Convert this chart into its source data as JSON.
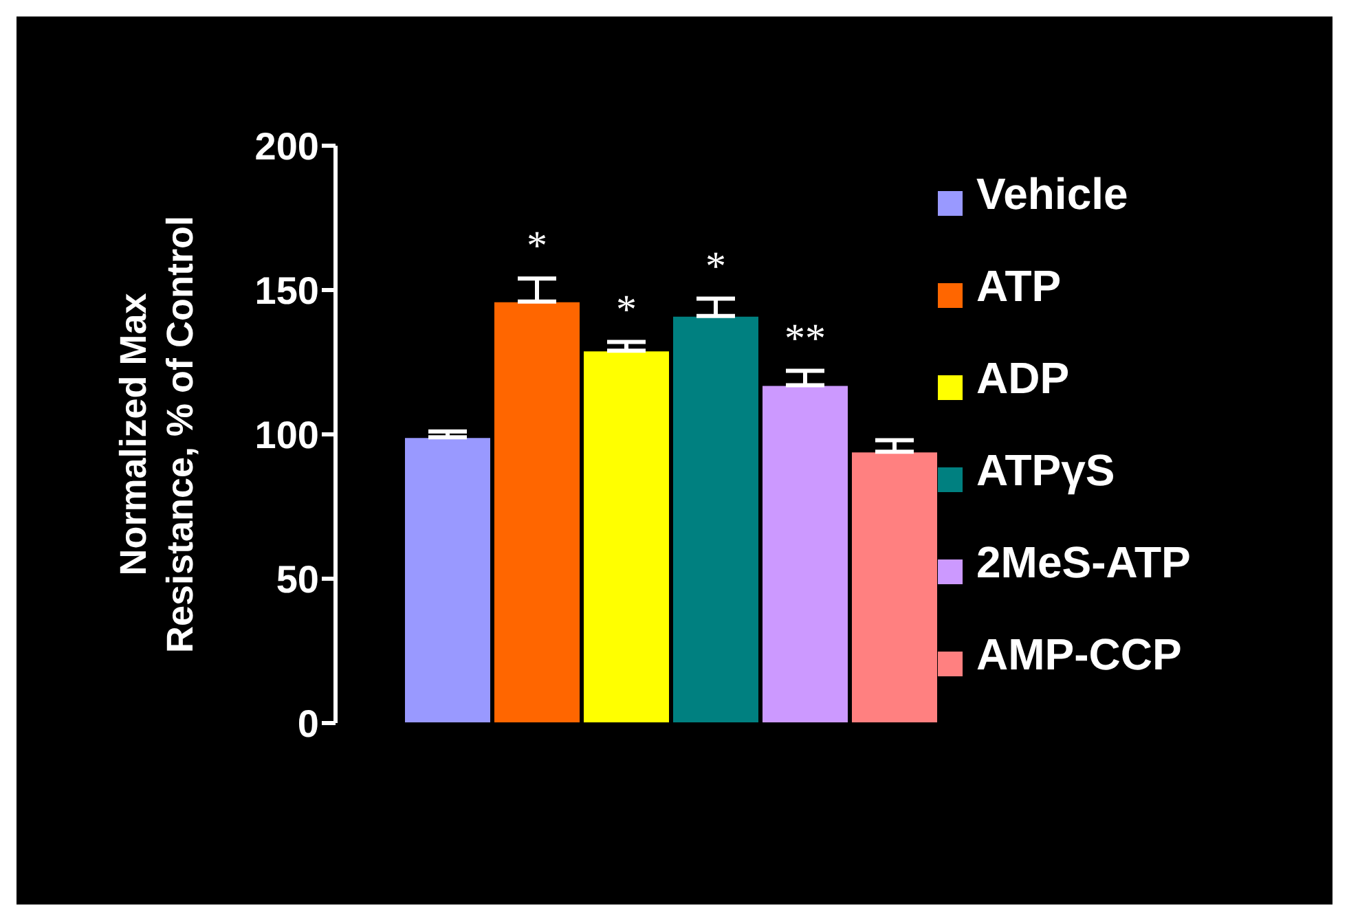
{
  "chart_data": {
    "type": "bar",
    "ylabel": "Normalized Max Resistance, % of Control",
    "categories": [
      null
    ],
    "series": [
      {
        "name": "Vehicle",
        "color": "#9999ff",
        "values": [
          99
        ],
        "errors": [
          [
            99,
            101
          ]
        ]
      },
      {
        "name": "ATP",
        "color": "#ff6600",
        "values": [
          146
        ],
        "errors": [
          [
            146,
            154
          ]
        ],
        "value_labels": [
          "*"
        ]
      },
      {
        "name": "ADP",
        "color": "#ffff00",
        "values": [
          129
        ],
        "errors": [
          [
            129,
            132
          ]
        ],
        "value_labels": [
          "*"
        ]
      },
      {
        "name": "ATPγS",
        "color": "#008080",
        "values": [
          141
        ],
        "errors": [
          [
            141,
            147
          ]
        ],
        "value_labels": [
          "*"
        ]
      },
      {
        "name": "2MeS-ATP",
        "color": "#cc99ff",
        "values": [
          117
        ],
        "errors": [
          [
            117,
            122
          ]
        ],
        "value_labels": [
          "**"
        ]
      },
      {
        "name": "AMP-CCP",
        "color": "#ff8080",
        "values": [
          94
        ],
        "errors": [
          [
            94,
            98
          ]
        ]
      }
    ],
    "ylim": [
      0,
      200
    ],
    "yticks": [
      0,
      50,
      100,
      150,
      200
    ],
    "legend": "right",
    "tick_labels": "y"
  }
}
